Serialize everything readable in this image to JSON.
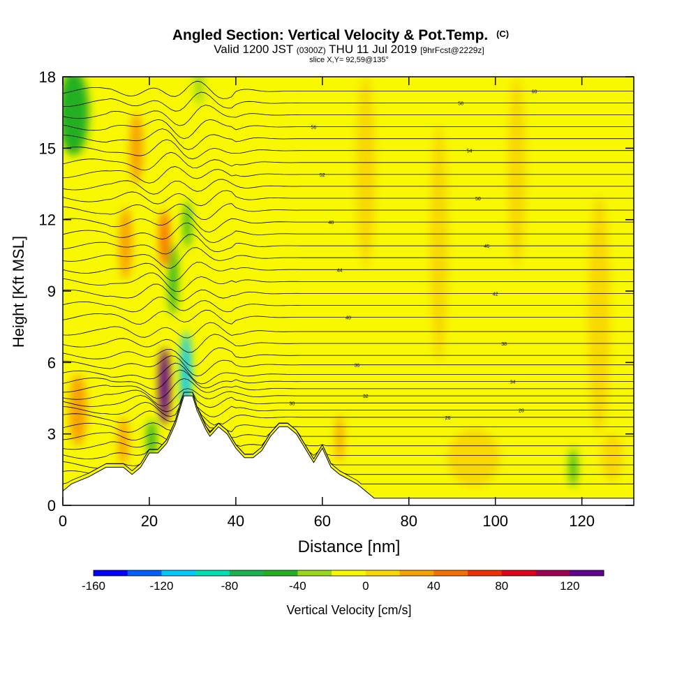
{
  "chart_data": {
    "type": "heatmap",
    "title": "Angled Section: Vertical Velocity & Pot.Temp.",
    "title_suffix": "(C)",
    "subtitle": {
      "valid_prefix": "Valid 1200 JST",
      "utc": "(0300Z)",
      "date": "THU 11 Jul 2019",
      "forecast": "[9hrFcst@2229z]"
    },
    "slice_label": "slice X,Y= 92,59@135°",
    "xlabel": "Distance [nm]",
    "ylabel": "Height [Kft MSL]",
    "xlim": [
      0,
      132
    ],
    "ylim": [
      0,
      18
    ],
    "x_ticks": [
      0,
      20,
      40,
      60,
      80,
      100,
      120
    ],
    "y_ticks": [
      0,
      3,
      6,
      9,
      12,
      15,
      18
    ],
    "colorbar": {
      "label": "Vertical Velocity [cm/s]",
      "range": [
        -160,
        140
      ],
      "tick_labels": [
        -160,
        -120,
        -80,
        -40,
        0,
        40,
        80,
        120
      ],
      "colors": [
        "#0000ff",
        "#0060ff",
        "#00c8ff",
        "#00e0b0",
        "#18b450",
        "#20b020",
        "#98d818",
        "#f8f800",
        "#f8d800",
        "#f8a000",
        "#f87000",
        "#f03000",
        "#e00018",
        "#a00050",
        "#600090"
      ]
    },
    "terrain_kft": [
      [
        0,
        0.6
      ],
      [
        2,
        0.9
      ],
      [
        6,
        1.2
      ],
      [
        10,
        1.6
      ],
      [
        14,
        1.6
      ],
      [
        16,
        1.3
      ],
      [
        18,
        1.6
      ],
      [
        20,
        2.2
      ],
      [
        22,
        2.2
      ],
      [
        24,
        2.6
      ],
      [
        26,
        3.4
      ],
      [
        27,
        4.0
      ],
      [
        28,
        4.6
      ],
      [
        30,
        4.6
      ],
      [
        31,
        4.0
      ],
      [
        33,
        3.2
      ],
      [
        34,
        2.9
      ],
      [
        36,
        3.3
      ],
      [
        38,
        3.0
      ],
      [
        40,
        2.4
      ],
      [
        42,
        2.0
      ],
      [
        44,
        2.0
      ],
      [
        46,
        2.3
      ],
      [
        48,
        2.9
      ],
      [
        50,
        3.3
      ],
      [
        52,
        3.3
      ],
      [
        54,
        3.0
      ],
      [
        56,
        2.4
      ],
      [
        58,
        1.8
      ],
      [
        60,
        2.4
      ],
      [
        61,
        2.0
      ],
      [
        62,
        1.6
      ],
      [
        64,
        1.3
      ],
      [
        66,
        1.1
      ],
      [
        68,
        0.9
      ],
      [
        70,
        0.6
      ],
      [
        72,
        0.3
      ],
      [
        132,
        0.3
      ]
    ],
    "isentropes": [
      {
        "base": 0.9,
        "label": ""
      },
      {
        "base": 1.3,
        "label": ""
      },
      {
        "base": 1.7,
        "label": ""
      },
      {
        "base": 2.1,
        "label": ""
      },
      {
        "base": 2.5,
        "label": ""
      },
      {
        "base": 2.9,
        "label": ""
      },
      {
        "base": 3.3,
        "label": ""
      },
      {
        "base": 3.7,
        "label": "26"
      },
      {
        "base": 4.0,
        "label": "28"
      },
      {
        "base": 4.3,
        "label": "30"
      },
      {
        "base": 4.6,
        "label": "32"
      },
      {
        "base": 4.9,
        "label": ""
      },
      {
        "base": 5.2,
        "label": "34"
      },
      {
        "base": 5.5,
        "label": ""
      },
      {
        "base": 5.9,
        "label": "36"
      },
      {
        "base": 6.3,
        "label": ""
      },
      {
        "base": 6.8,
        "label": "38"
      },
      {
        "base": 7.3,
        "label": ""
      },
      {
        "base": 7.9,
        "label": "40"
      },
      {
        "base": 8.4,
        "label": ""
      },
      {
        "base": 8.9,
        "label": "42"
      },
      {
        "base": 9.4,
        "label": ""
      },
      {
        "base": 9.9,
        "label": "44"
      },
      {
        "base": 10.4,
        "label": ""
      },
      {
        "base": 10.9,
        "label": "46"
      },
      {
        "base": 11.4,
        "label": ""
      },
      {
        "base": 11.9,
        "label": "48"
      },
      {
        "base": 12.4,
        "label": ""
      },
      {
        "base": 12.9,
        "label": "50"
      },
      {
        "base": 13.4,
        "label": ""
      },
      {
        "base": 13.9,
        "label": "52"
      },
      {
        "base": 14.4,
        "label": ""
      },
      {
        "base": 14.9,
        "label": "54"
      },
      {
        "base": 15.4,
        "label": ""
      },
      {
        "base": 15.9,
        "label": "56"
      },
      {
        "base": 16.4,
        "label": ""
      },
      {
        "base": 16.9,
        "label": "58"
      },
      {
        "base": 17.4,
        "label": "60"
      }
    ],
    "velocity_features": [
      {
        "x": 23.5,
        "y": 5.0,
        "sx": 1.3,
        "sy": 1.6,
        "value": 120
      },
      {
        "x": 28.5,
        "y": 5.5,
        "sx": 1.2,
        "sy": 1.8,
        "value": -120
      },
      {
        "x": 25.5,
        "y": 9.5,
        "sx": 1.0,
        "sy": 1.5,
        "value": -60
      },
      {
        "x": 28.8,
        "y": 11.8,
        "sx": 0.8,
        "sy": 1.0,
        "value": -50
      },
      {
        "x": 20.5,
        "y": 2.8,
        "sx": 1.0,
        "sy": 0.8,
        "value": -50
      },
      {
        "x": 23.5,
        "y": 11.2,
        "sx": 1.2,
        "sy": 1.2,
        "value": 40
      },
      {
        "x": 2.5,
        "y": 16.5,
        "sx": 3.5,
        "sy": 1.8,
        "value": -45
      },
      {
        "x": 31.5,
        "y": 17.6,
        "sx": 1.0,
        "sy": 0.8,
        "value": -40
      },
      {
        "x": 118,
        "y": 1.6,
        "sx": 0.8,
        "sy": 0.8,
        "value": -45
      },
      {
        "x": 14.5,
        "y": 11.0,
        "sx": 1.5,
        "sy": 1.5,
        "value": 30
      },
      {
        "x": 17,
        "y": 15.0,
        "sx": 1.5,
        "sy": 1.5,
        "value": 25
      },
      {
        "x": 14,
        "y": 2.7,
        "sx": 1.2,
        "sy": 1.0,
        "value": 25
      },
      {
        "x": 3.5,
        "y": 4.0,
        "sx": 2.0,
        "sy": 1.5,
        "value": 20
      },
      {
        "x": 64,
        "y": 2.8,
        "sx": 0.8,
        "sy": 1.0,
        "value": 25
      },
      {
        "x": 70,
        "y": 14,
        "sx": 2.2,
        "sy": 4.0,
        "value": 18
      },
      {
        "x": 87,
        "y": 11,
        "sx": 2.0,
        "sy": 5.0,
        "value": 16
      },
      {
        "x": 105,
        "y": 14,
        "sx": 2.0,
        "sy": 4.0,
        "value": 15
      },
      {
        "x": 124,
        "y": 8,
        "sx": 2.5,
        "sy": 5.0,
        "value": 14
      },
      {
        "x": 95,
        "y": 2.0,
        "sx": 6.0,
        "sy": 1.2,
        "value": 15
      },
      {
        "x": 127,
        "y": 2.0,
        "sx": 2.5,
        "sy": 1.0,
        "value": 12
      }
    ]
  }
}
